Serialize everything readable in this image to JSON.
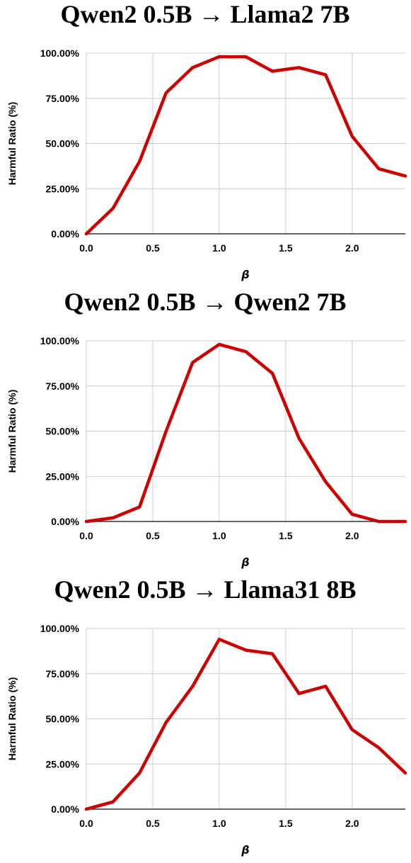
{
  "chart_data": [
    {
      "type": "line",
      "title": "Qwen2 0.5B → Llama2 7B",
      "xlabel": "β",
      "ylabel": "Harmful Ratio (%)",
      "xlim": [
        0,
        2.4
      ],
      "ylim": [
        0,
        100
      ],
      "x_ticks": [
        "0.0",
        "0.5",
        "1.0",
        "1.5",
        "2.0"
      ],
      "y_ticks": [
        "0.00%",
        "25.00%",
        "50.00%",
        "75.00%",
        "100.00%"
      ],
      "grid": true,
      "line_color": "#cc0000",
      "x": [
        0,
        0.2,
        0.4,
        0.6,
        0.8,
        1.0,
        1.2,
        1.4,
        1.6,
        1.8,
        2.0,
        2.2,
        2.4
      ],
      "values": [
        0,
        14,
        40,
        78,
        92,
        98,
        98,
        90,
        92,
        88,
        54,
        36,
        32
      ]
    },
    {
      "type": "line",
      "title": "Qwen2 0.5B → Qwen2 7B",
      "xlabel": "β",
      "ylabel": "Harmful Ratio (%)",
      "xlim": [
        0,
        2.4
      ],
      "ylim": [
        0,
        100
      ],
      "x_ticks": [
        "0.0",
        "0.5",
        "1.0",
        "1.5",
        "2.0"
      ],
      "y_ticks": [
        "0.00%",
        "25.00%",
        "50.00%",
        "75.00%",
        "100.00%"
      ],
      "grid": true,
      "line_color": "#cc0000",
      "x": [
        0,
        0.2,
        0.4,
        0.6,
        0.8,
        1.0,
        1.2,
        1.4,
        1.6,
        1.8,
        2.0,
        2.2,
        2.4
      ],
      "values": [
        0,
        2,
        8,
        50,
        88,
        98,
        94,
        82,
        46,
        22,
        4,
        0,
        0
      ]
    },
    {
      "type": "line",
      "title": "Qwen2 0.5B → Llama31 8B",
      "xlabel": "β",
      "ylabel": "Harmful Ratio (%)",
      "xlim": [
        0,
        2.4
      ],
      "ylim": [
        0,
        100
      ],
      "x_ticks": [
        "0.0",
        "0.5",
        "1.0",
        "1.5",
        "2.0"
      ],
      "y_ticks": [
        "0.00%",
        "25.00%",
        "50.00%",
        "75.00%",
        "100.00%"
      ],
      "grid": true,
      "line_color": "#cc0000",
      "x": [
        0,
        0.2,
        0.4,
        0.6,
        0.8,
        1.0,
        1.2,
        1.4,
        1.6,
        1.8,
        2.0,
        2.2,
        2.4
      ],
      "values": [
        0,
        4,
        20,
        48,
        68,
        94,
        88,
        86,
        64,
        68,
        44,
        34,
        20
      ]
    }
  ]
}
